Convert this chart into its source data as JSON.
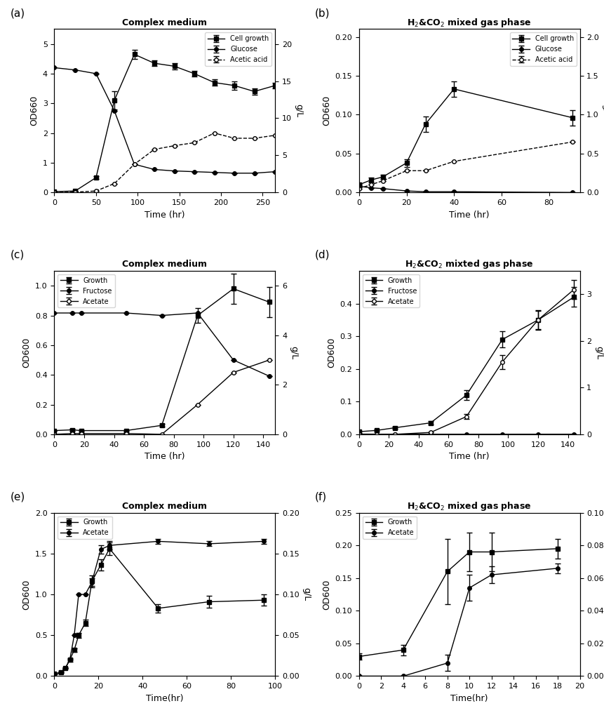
{
  "panel_a": {
    "title": "Complex medium",
    "xlabel": "Time (hr)",
    "ylabel_left": "OD660",
    "ylabel_right": "g/L",
    "xlim": [
      0,
      265
    ],
    "ylim_left": [
      0,
      5.5
    ],
    "ylim_right": [
      0,
      22
    ],
    "yticks_left": [
      0,
      1,
      2,
      3,
      4,
      5
    ],
    "yticks_right": [
      0,
      5,
      10,
      15,
      20
    ],
    "xticks": [
      0,
      50,
      100,
      150,
      200,
      250
    ],
    "cell_growth_x": [
      0,
      25,
      50,
      72,
      96,
      120,
      144,
      168,
      192,
      216,
      240,
      265
    ],
    "cell_growth_y": [
      0.03,
      0.05,
      0.5,
      3.1,
      4.65,
      4.35,
      4.25,
      4.0,
      3.7,
      3.6,
      3.4,
      3.6
    ],
    "cell_growth_err": [
      0.0,
      0.0,
      0.05,
      0.3,
      0.15,
      0.1,
      0.1,
      0.1,
      0.1,
      0.15,
      0.1,
      0.1
    ],
    "glucose_x": [
      0,
      25,
      50,
      72,
      96,
      120,
      144,
      168,
      192,
      216,
      240,
      265
    ],
    "glucose_y": [
      16.8,
      16.5,
      16.0,
      11.0,
      3.8,
      3.1,
      2.9,
      2.8,
      2.7,
      2.6,
      2.6,
      2.8
    ],
    "glucose_err": [
      0.0,
      0.0,
      0.0,
      0.0,
      0.0,
      0.0,
      0.0,
      0.0,
      0.0,
      0.0,
      0.0,
      0.0
    ],
    "acetic_x": [
      0,
      25,
      50,
      72,
      96,
      120,
      144,
      168,
      192,
      216,
      240,
      265
    ],
    "acetic_y": [
      0.0,
      0.05,
      0.2,
      1.2,
      3.8,
      5.8,
      6.3,
      6.7,
      8.0,
      7.3,
      7.3,
      7.7
    ],
    "acetic_err": [
      0.0,
      0.0,
      0.0,
      0.0,
      0.0,
      0.0,
      0.0,
      0.0,
      0.0,
      0.0,
      0.0,
      0.0
    ]
  },
  "panel_b": {
    "title": "H$_2$&CO$_2$ mixed gas phase",
    "xlabel": "Time (hr)",
    "ylabel_left": "OD660",
    "ylabel_right": "g/L",
    "xlim": [
      0,
      93
    ],
    "ylim_left": [
      0,
      0.21
    ],
    "ylim_right": [
      0,
      2.1
    ],
    "yticks_left": [
      0.0,
      0.05,
      0.1,
      0.15,
      0.2
    ],
    "yticks_right": [
      0.0,
      0.5,
      1.0,
      1.5,
      2.0
    ],
    "xticks": [
      0,
      20,
      40,
      60,
      80
    ],
    "cell_growth_x": [
      0,
      5,
      10,
      20,
      28,
      40,
      90
    ],
    "cell_growth_y": [
      0.01,
      0.016,
      0.02,
      0.038,
      0.088,
      0.133,
      0.096
    ],
    "cell_growth_err": [
      0.0,
      0.003,
      0.003,
      0.005,
      0.01,
      0.01,
      0.01
    ],
    "glucose_x": [
      0,
      5,
      10,
      20,
      28,
      40,
      90
    ],
    "glucose_y": [
      0.08,
      0.06,
      0.05,
      0.02,
      0.01,
      0.01,
      0.0
    ],
    "glucose_err": [
      0.0,
      0.0,
      0.0,
      0.0,
      0.0,
      0.0,
      0.0
    ],
    "acetic_x": [
      0,
      5,
      10,
      20,
      28,
      40,
      90
    ],
    "acetic_y": [
      0.05,
      0.1,
      0.15,
      0.28,
      0.28,
      0.4,
      0.65
    ],
    "acetic_err": [
      0.0,
      0.0,
      0.0,
      0.0,
      0.0,
      0.0,
      0.0
    ]
  },
  "panel_c": {
    "title": "Complex medium",
    "xlabel": "Time (hr)",
    "ylabel_left": "OD600",
    "ylabel_right": "g/L",
    "xlim": [
      0,
      148
    ],
    "ylim_left": [
      0,
      1.1
    ],
    "ylim_right": [
      0,
      6.6
    ],
    "yticks_left": [
      0.0,
      0.2,
      0.4,
      0.6,
      0.8,
      1.0
    ],
    "yticks_right": [
      0,
      2,
      4,
      6
    ],
    "xticks": [
      0,
      20,
      40,
      60,
      80,
      100,
      120,
      140
    ],
    "growth_x": [
      0,
      12,
      18,
      48,
      72,
      96,
      120,
      144
    ],
    "growth_y": [
      0.025,
      0.03,
      0.025,
      0.025,
      0.06,
      0.8,
      0.98,
      0.89
    ],
    "growth_err": [
      0.0,
      0.005,
      0.005,
      0.005,
      0.01,
      0.05,
      0.1,
      0.1
    ],
    "fructose_x": [
      0,
      12,
      18,
      48,
      72,
      96,
      120,
      144
    ],
    "fructose_y": [
      4.9,
      4.9,
      4.9,
      4.9,
      4.8,
      4.9,
      3.0,
      2.35
    ],
    "fructose_err": [
      0.0,
      0.0,
      0.0,
      0.0,
      0.0,
      0.0,
      0.0,
      0.0
    ],
    "acetate_x": [
      0,
      12,
      18,
      48,
      72,
      96,
      120,
      144
    ],
    "acetate_y": [
      0.0,
      0.03,
      0.03,
      0.03,
      0.0,
      1.2,
      2.5,
      3.0
    ],
    "acetate_err": [
      0.0,
      0.0,
      0.0,
      0.0,
      0.0,
      0.0,
      0.0,
      0.0
    ]
  },
  "panel_d": {
    "title": "H$_2$&CO$_2$ mixted gas phase",
    "xlabel": "Time (hr)",
    "ylabel_left": "OD600",
    "ylabel_right": "g/L",
    "xlim": [
      0,
      148
    ],
    "ylim_left": [
      0,
      0.5
    ],
    "ylim_right": [
      0,
      3.5
    ],
    "yticks_left": [
      0.0,
      0.1,
      0.2,
      0.3,
      0.4
    ],
    "yticks_right": [
      0,
      1,
      2,
      3
    ],
    "xticks": [
      0,
      20,
      40,
      60,
      80,
      100,
      120,
      140
    ],
    "growth_x": [
      0,
      12,
      24,
      48,
      72,
      96,
      120,
      144
    ],
    "growth_y": [
      0.008,
      0.012,
      0.02,
      0.035,
      0.12,
      0.29,
      0.35,
      0.42
    ],
    "growth_err": [
      0.003,
      0.003,
      0.003,
      0.005,
      0.015,
      0.025,
      0.03,
      0.03
    ],
    "fructose_x": [
      0,
      12,
      24,
      48,
      72,
      96,
      120,
      144
    ],
    "fructose_y": [
      0.005,
      0.003,
      0.002,
      0.002,
      0.002,
      0.002,
      0.002,
      0.002
    ],
    "fructose_err": [
      0.0,
      0.0,
      0.0,
      0.0,
      0.0,
      0.0,
      0.0,
      0.0
    ],
    "acetate_x": [
      0,
      12,
      24,
      48,
      72,
      96,
      120,
      144
    ],
    "acetate_y": [
      0.0,
      0.0,
      0.0,
      0.04,
      0.38,
      1.55,
      2.45,
      3.1
    ],
    "acetate_err": [
      0.0,
      0.0,
      0.0,
      0.0,
      0.05,
      0.15,
      0.2,
      0.2
    ]
  },
  "panel_e": {
    "title": "Complex medium",
    "xlabel": "Time(hr)",
    "ylabel_left": "OD600",
    "ylabel_right": "g/L",
    "xlim": [
      0,
      100
    ],
    "ylim_left": [
      0,
      2.0
    ],
    "ylim_right": [
      0,
      0.2
    ],
    "yticks_left": [
      0.0,
      0.5,
      1.0,
      1.5,
      2.0
    ],
    "yticks_right": [
      0.0,
      0.05,
      0.1,
      0.15,
      0.2
    ],
    "xticks": [
      0,
      20,
      40,
      60,
      80,
      100
    ],
    "growth_x": [
      0,
      3,
      5,
      7,
      9,
      11,
      14,
      17,
      21,
      25,
      47,
      70,
      95
    ],
    "growth_y": [
      0.03,
      0.05,
      0.1,
      0.2,
      0.32,
      0.5,
      0.65,
      1.16,
      1.36,
      1.56,
      0.83,
      0.91,
      0.93
    ],
    "growth_err": [
      0.0,
      0.01,
      0.01,
      0.02,
      0.02,
      0.03,
      0.04,
      0.07,
      0.07,
      0.08,
      0.05,
      0.07,
      0.07
    ],
    "acetate_x": [
      0,
      3,
      5,
      7,
      9,
      11,
      14,
      17,
      21,
      25,
      47,
      70,
      95
    ],
    "acetate_y": [
      0.0,
      0.005,
      0.01,
      0.02,
      0.05,
      0.1,
      0.1,
      0.115,
      0.155,
      0.16,
      0.165,
      0.162,
      0.165
    ],
    "acetate_err": [
      0.0,
      0.0,
      0.0,
      0.0,
      0.0,
      0.0,
      0.0,
      0.005,
      0.005,
      0.005,
      0.003,
      0.003,
      0.003
    ]
  },
  "panel_f": {
    "title": "H$_2$&CO$_2$ mixed gas phase",
    "xlabel": "Time(hr)",
    "ylabel_left": "OD600",
    "ylabel_right": "g/L",
    "xlim": [
      0,
      20
    ],
    "ylim_left": [
      0,
      0.25
    ],
    "ylim_right": [
      0,
      0.1
    ],
    "yticks_left": [
      0.0,
      0.05,
      0.1,
      0.15,
      0.2,
      0.25
    ],
    "yticks_right": [
      0.0,
      0.02,
      0.04,
      0.06,
      0.08,
      0.1
    ],
    "xticks": [
      0,
      2,
      4,
      6,
      8,
      10,
      12,
      14,
      16,
      18,
      20
    ],
    "growth_x": [
      0,
      4,
      8,
      10,
      12,
      18
    ],
    "growth_y": [
      0.03,
      0.04,
      0.16,
      0.19,
      0.19,
      0.195
    ],
    "growth_err": [
      0.005,
      0.008,
      0.05,
      0.03,
      0.03,
      0.015
    ],
    "acetate_x": [
      0,
      4,
      8,
      10,
      12,
      18
    ],
    "acetate_y": [
      0.0,
      0.0,
      0.008,
      0.054,
      0.062,
      0.066
    ],
    "acetate_err": [
      0.0,
      0.0,
      0.005,
      0.008,
      0.005,
      0.003
    ]
  }
}
